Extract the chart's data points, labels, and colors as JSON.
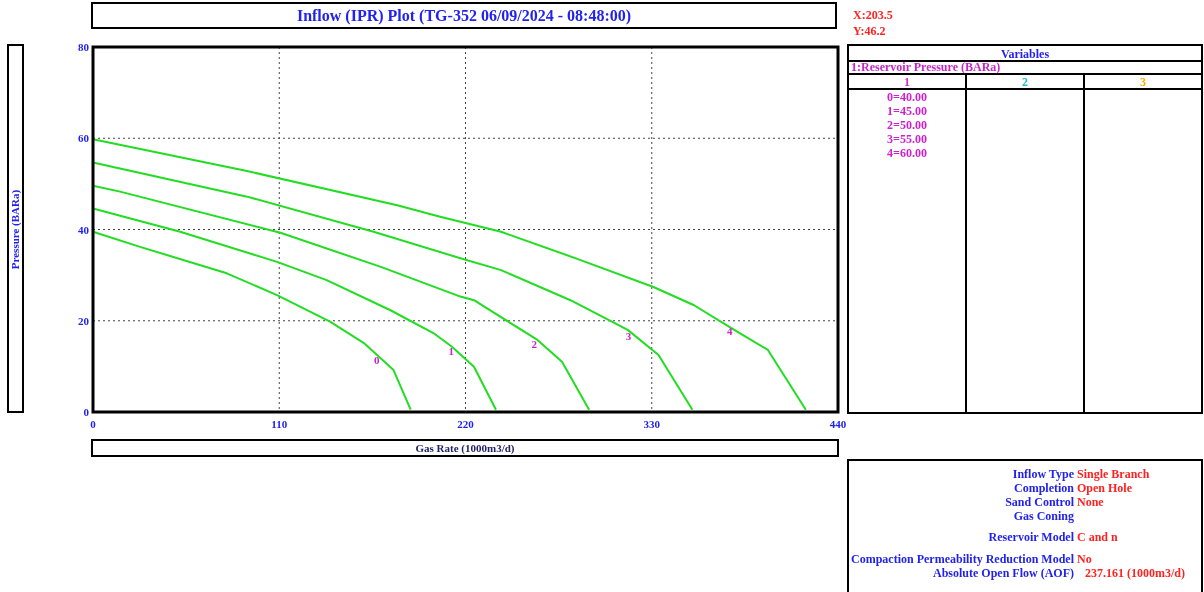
{
  "chart_data": [
    {
      "type": "line",
      "title": "Inflow (IPR) Plot (TG-352 06/09/2024 - 08:48:00)",
      "xlabel": "Gas Rate  (1000m3/d)",
      "ylabel": "Pressure  (BARa)",
      "xlim": [
        0,
        440
      ],
      "ylim": [
        0,
        80
      ],
      "xticks": [
        0,
        110,
        220,
        330,
        440
      ],
      "yticks": [
        0,
        20,
        40,
        60,
        80
      ],
      "grid": true,
      "series": [
        {
          "color": "#22dd22",
          "x": [
            0,
            27.8,
            79,
            108.7,
            140,
            160,
            177.5,
            187.6
          ],
          "values": [
            39.5,
            36.2,
            30.4,
            25.6,
            19.8,
            15.1,
            9.2,
            0.5
          ]
        },
        {
          "color": "#22dd22",
          "x": [
            0,
            51.5,
            108.7,
            138,
            175.7,
            201,
            212,
            225,
            238
          ],
          "values": [
            44.6,
            39.5,
            32.9,
            28.9,
            22.3,
            17.3,
            14.3,
            9.9,
            0.5
          ]
        },
        {
          "color": "#22dd22",
          "x": [
            0,
            16,
            110.7,
            170,
            217,
            225,
            262.5,
            277,
            293
          ],
          "values": [
            49.6,
            48.3,
            39.3,
            31.8,
            25.3,
            24.5,
            15.8,
            11,
            0.5
          ]
        },
        {
          "color": "#22dd22",
          "x": [
            0,
            91,
            165.7,
            217,
            241,
            282,
            315.8,
            334,
            354
          ],
          "values": [
            54.7,
            47.2,
            39.5,
            33.7,
            31.1,
            24.5,
            18,
            12.5,
            0.5
          ]
        },
        {
          "color": "#22dd22",
          "x": [
            0,
            88.8,
            179.7,
            205,
            241,
            288,
            331,
            355,
            378.7,
            398.6,
            421
          ],
          "values": [
            59.8,
            53,
            45.3,
            42.8,
            39.5,
            33.3,
            27.4,
            23.4,
            18,
            13.6,
            0.5
          ]
        }
      ],
      "annotations": [
        "X:203.5",
        "Y:46.2",
        {
          "text": "0",
          "x": 170,
          "y": 11
        },
        {
          "text": "1",
          "x": 214,
          "y": 13
        },
        {
          "text": "2",
          "x": 263,
          "y": 14.5
        },
        {
          "text": "3",
          "x": 318.7,
          "y": 16.2
        },
        {
          "text": "4",
          "x": 378.5,
          "y": 17.4
        }
      ]
    },
    {
      "type": "other",
      "title": "Variables",
      "subtitle": "1:Reservoir Pressure (BARa)",
      "categories": [
        "1",
        "2",
        "3"
      ],
      "annotations": [
        "0=40.00",
        "1=45.00",
        "2=50.00",
        "3=55.00",
        "4=60.00"
      ]
    },
    {
      "type": "other",
      "categories": [
        "Inflow Type",
        "Completion",
        "Sand Control",
        "Gas Coning",
        "Reservoir Model",
        "Compaction Permeability Reduction Model",
        "Absolute Open Flow (AOF)"
      ],
      "value_labels": [
        "Single Branch",
        "Open Hole",
        "None",
        null,
        "C and n",
        "No",
        "237.161  (1000m3/d)"
      ]
    }
  ]
}
